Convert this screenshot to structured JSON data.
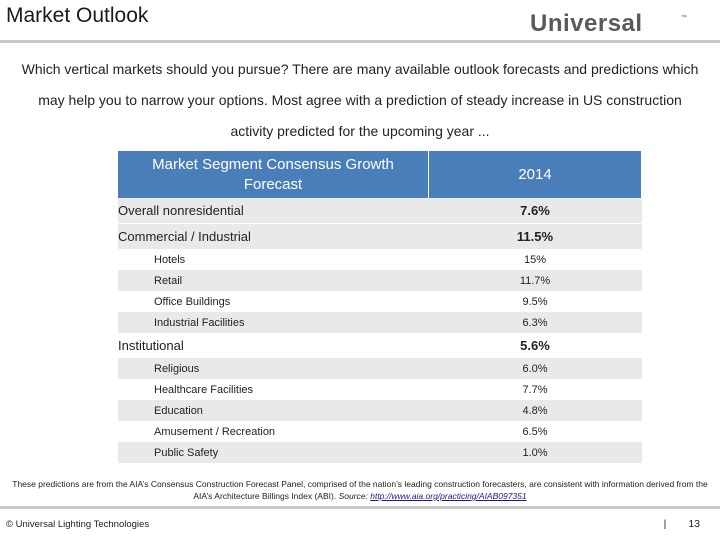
{
  "slide": {
    "title": "Market Outlook",
    "logo_text": "Universal",
    "logo_tm": "™",
    "intro": "Which vertical markets should you pursue? There are many available outlook forecasts and predictions which may help you to narrow your options. Most agree with a prediction of steady increase in US construction activity predicted for the upcoming year ..."
  },
  "table": {
    "header_segment": "Market Segment Consensus Growth Forecast",
    "header_year": "2014",
    "rows": [
      {
        "label": "Overall nonresidential",
        "value": "7.6%"
      },
      {
        "label": "Commercial / Industrial",
        "value": "11.5%"
      },
      {
        "label": "Hotels",
        "value": "15%"
      },
      {
        "label": "Retail",
        "value": "11.7%"
      },
      {
        "label": "Office Buildings",
        "value": "9.5%"
      },
      {
        "label": "Industrial Facilities",
        "value": "6.3%"
      },
      {
        "label": "Institutional",
        "value": "5.6%"
      },
      {
        "label": "Religious",
        "value": "6.0%"
      },
      {
        "label": "Healthcare Facilities",
        "value": "7.7%"
      },
      {
        "label": "Education",
        "value": "4.8%"
      },
      {
        "label": "Amusement / Recreation",
        "value": "6.5%"
      },
      {
        "label": "Public Safety",
        "value": "1.0%"
      }
    ]
  },
  "footnote": {
    "text": "These predictions are from the AIA’s Consensus Construction Forecast Panel, comprised of the nation’s leading construction forecasters, are consistent with information derived from the AIA’s Architecture Billings Index (ABI).",
    "source_label": "Source:",
    "source_link": "http://www.aia.org/practicing/AIAB097351"
  },
  "footer": {
    "copyright": "© Universal Lighting Technologies",
    "separator": "|",
    "page_number": "13"
  },
  "colors": {
    "header_blue": "#4a7ebb",
    "stripe_gray": "#e9e9e9",
    "logo_gray": "#5a5a5a"
  }
}
